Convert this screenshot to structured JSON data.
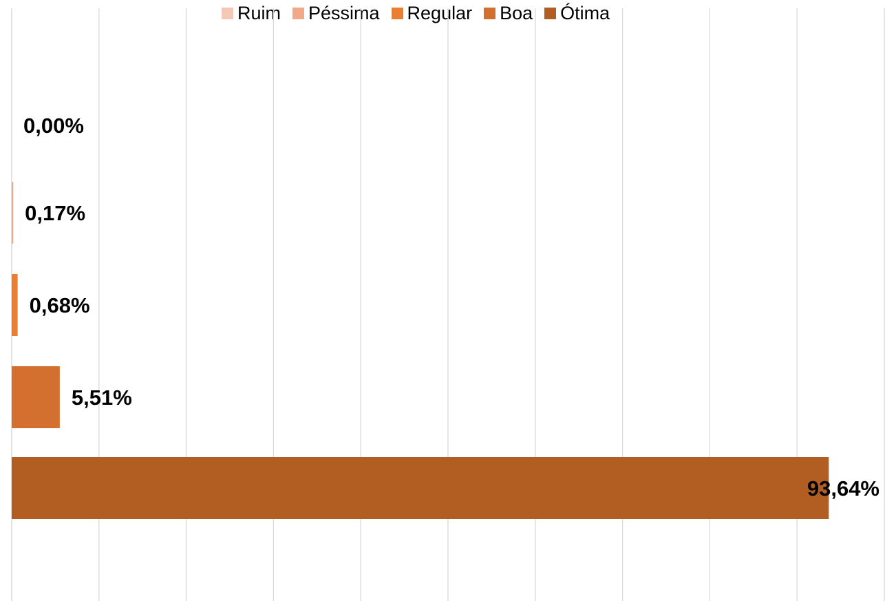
{
  "chart_data": {
    "type": "bar",
    "orientation": "horizontal",
    "series": [
      {
        "name": "Ruim",
        "value": 0.0,
        "label": "0,00%",
        "color": "#F4C7B6"
      },
      {
        "name": "Péssima",
        "value": 0.17,
        "label": "0,17%",
        "color": "#F1A98A"
      },
      {
        "name": "Regular",
        "value": 0.68,
        "label": "0,68%",
        "color": "#ED7D31"
      },
      {
        "name": "Boa",
        "value": 5.51,
        "label": "5,51%",
        "color": "#D4702F"
      },
      {
        "name": "Ótima",
        "value": 93.64,
        "label": "93,64%",
        "color": "#B25E23"
      }
    ],
    "xlim": [
      0,
      100
    ],
    "grid": true,
    "legend_position": "top-center",
    "tick_labels_shown": false
  }
}
